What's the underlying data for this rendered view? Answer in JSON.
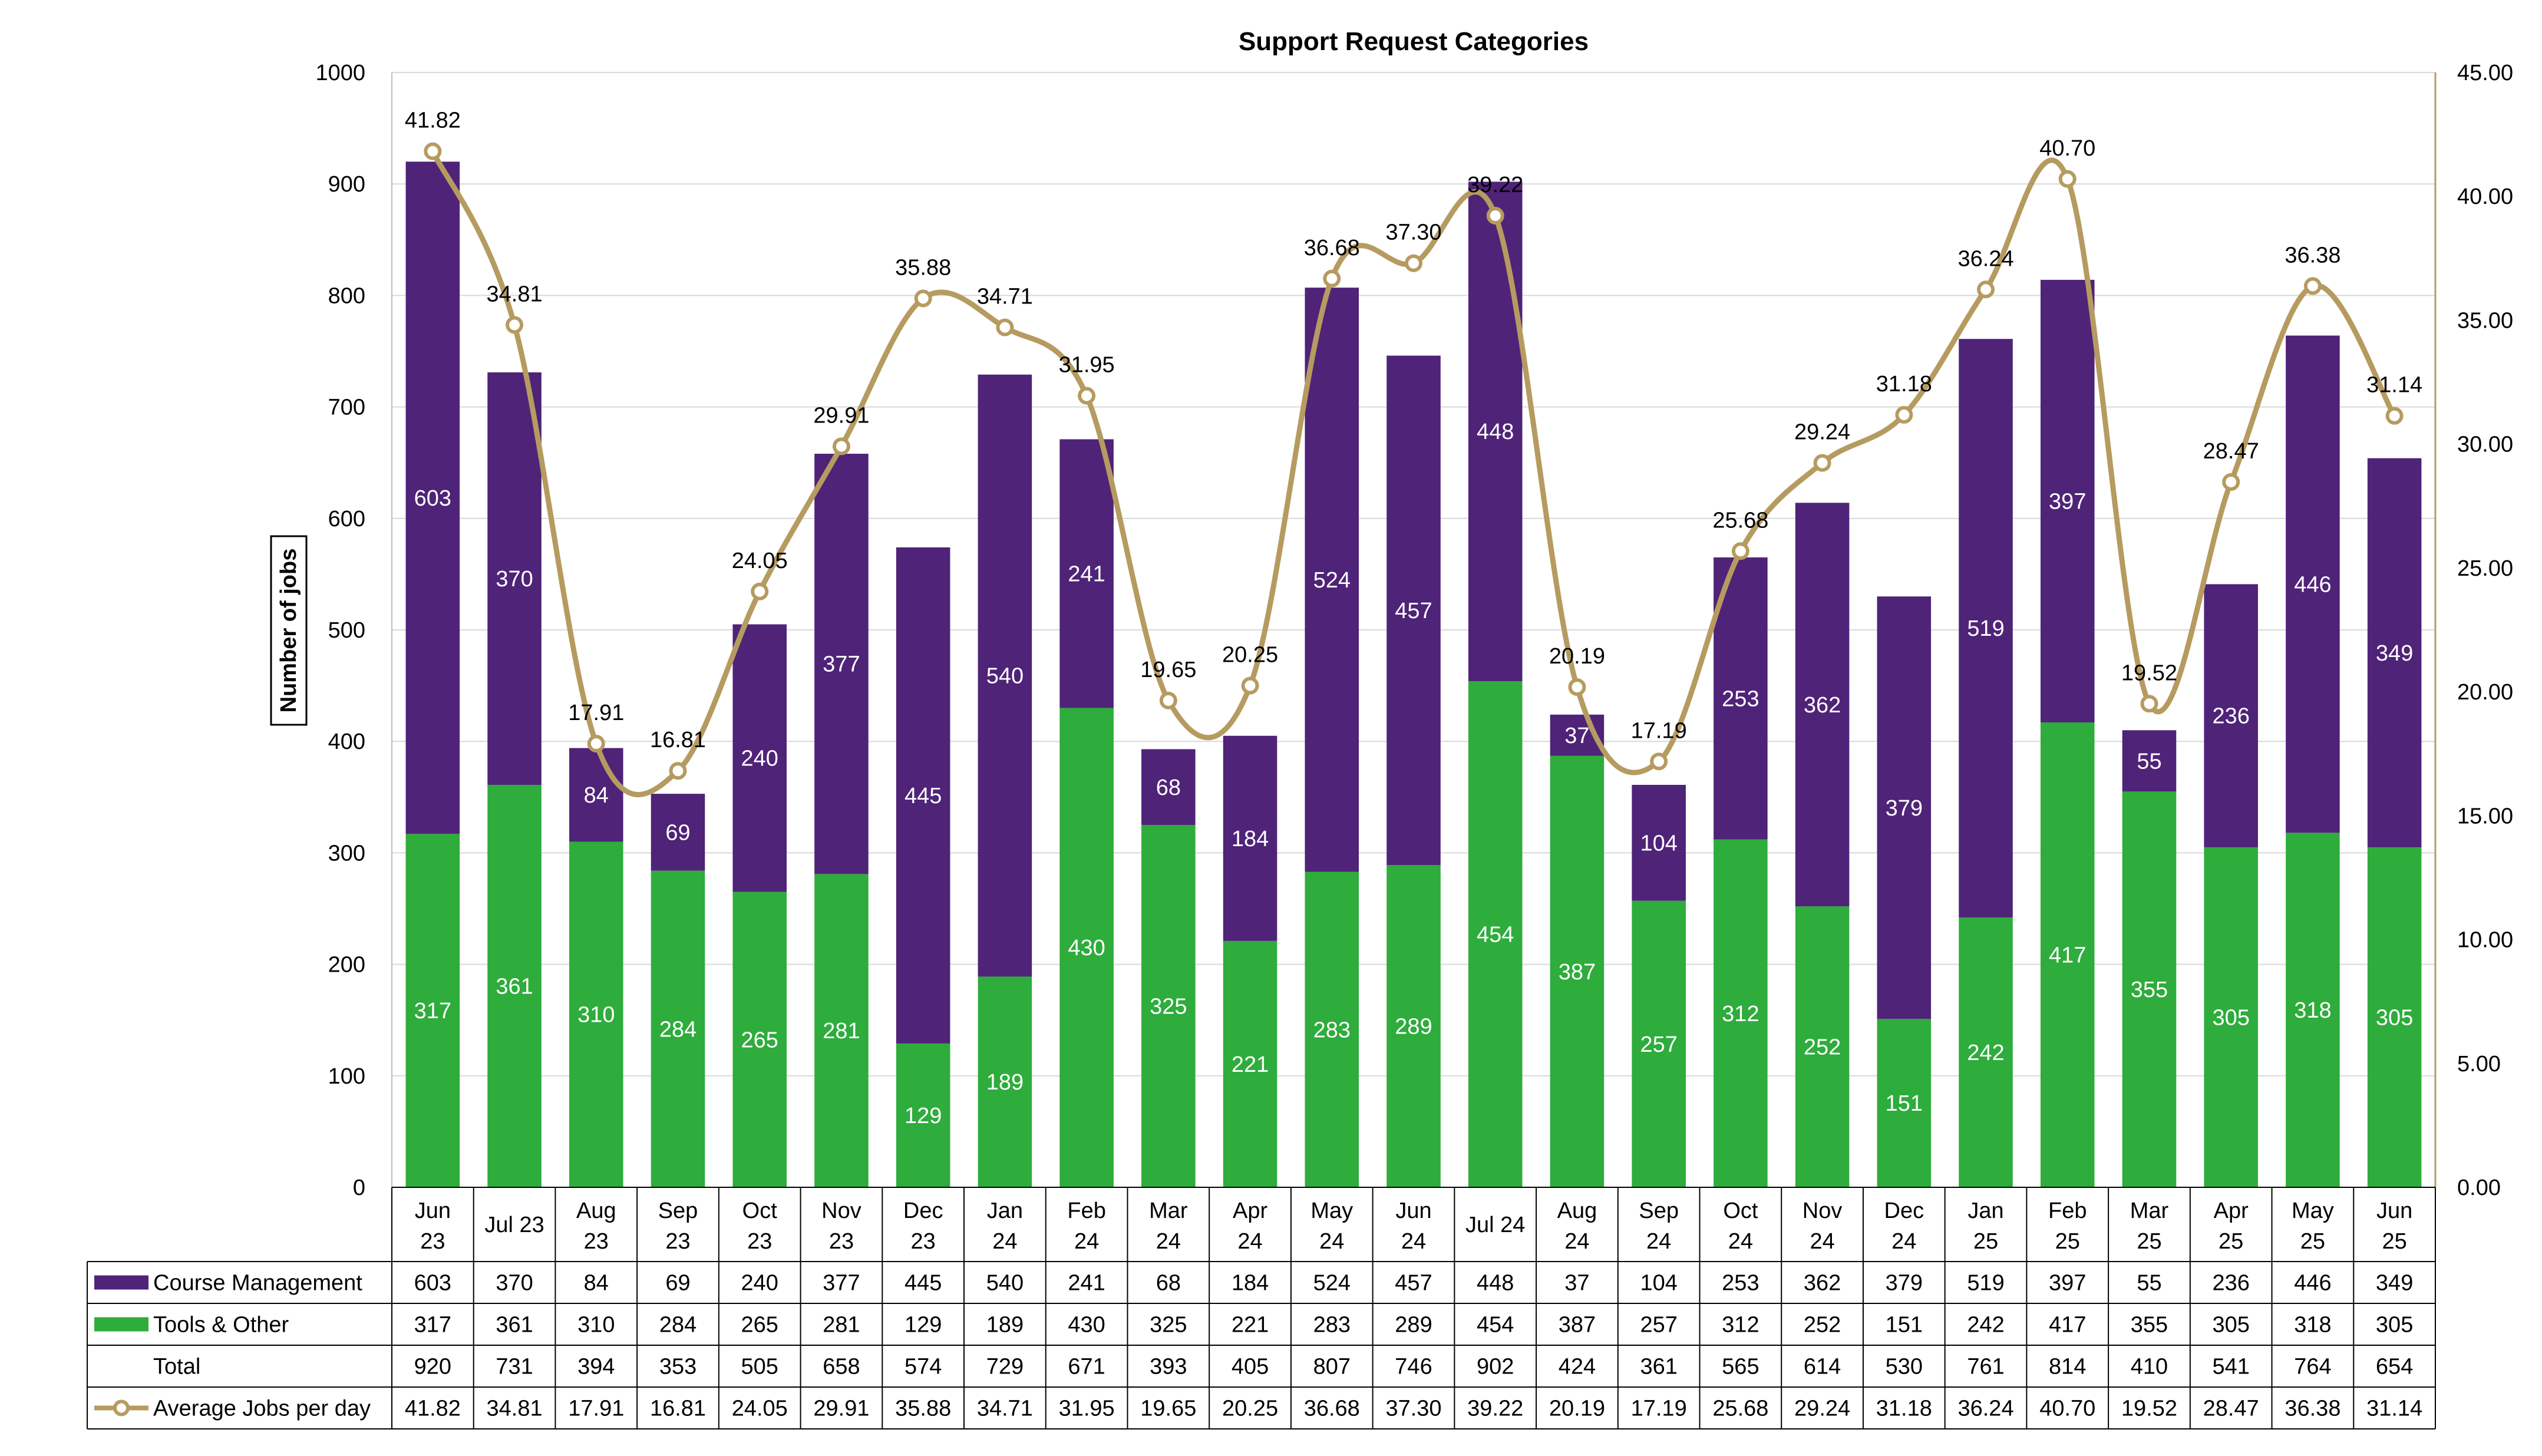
{
  "chart_data": {
    "type": "bar",
    "title": "Support Request Categories",
    "ylabel": "Number of jobs",
    "ylim": [
      0,
      1000
    ],
    "y_ticks": [
      "0",
      "100",
      "200",
      "300",
      "400",
      "500",
      "600",
      "700",
      "800",
      "900",
      "1000"
    ],
    "y2lim": [
      0,
      45
    ],
    "y2_ticks": [
      "0.00",
      "5.00",
      "10.00",
      "15.00",
      "20.00",
      "25.00",
      "30.00",
      "35.00",
      "40.00",
      "45.00"
    ],
    "categories": [
      [
        "Jun",
        "23"
      ],
      [
        "Jul 23"
      ],
      [
        "Aug",
        "23"
      ],
      [
        "Sep",
        "23"
      ],
      [
        "Oct",
        "23"
      ],
      [
        "Nov",
        "23"
      ],
      [
        "Dec",
        "23"
      ],
      [
        "Jan",
        "24"
      ],
      [
        "Feb",
        "24"
      ],
      [
        "Mar",
        "24"
      ],
      [
        "Apr",
        "24"
      ],
      [
        "May",
        "24"
      ],
      [
        "Jun",
        "24"
      ],
      [
        "Jul 24"
      ],
      [
        "Aug",
        "24"
      ],
      [
        "Sep",
        "24"
      ],
      [
        "Oct",
        "24"
      ],
      [
        "Nov",
        "24"
      ],
      [
        "Dec",
        "24"
      ],
      [
        "Jan",
        "25"
      ],
      [
        "Feb",
        "25"
      ],
      [
        "Mar",
        "25"
      ],
      [
        "Apr",
        "25"
      ],
      [
        "May",
        "25"
      ],
      [
        "Jun",
        "25"
      ]
    ],
    "series": [
      {
        "name": "Course Management",
        "type": "bar",
        "color": "#4f2378",
        "values": [
          603,
          370,
          84,
          69,
          240,
          377,
          445,
          540,
          241,
          68,
          184,
          524,
          457,
          448,
          37,
          104,
          253,
          362,
          379,
          519,
          397,
          55,
          236,
          446,
          349
        ]
      },
      {
        "name": "Tools & Other",
        "type": "bar",
        "color": "#2eac3c",
        "values": [
          317,
          361,
          310,
          284,
          265,
          281,
          129,
          189,
          430,
          325,
          221,
          283,
          289,
          454,
          387,
          257,
          312,
          252,
          151,
          242,
          417,
          355,
          305,
          318,
          305
        ]
      },
      {
        "name": "Average Jobs per day",
        "type": "line",
        "color": "#b69b60",
        "axis": "secondary",
        "values": [
          41.82,
          34.81,
          17.91,
          16.81,
          24.05,
          29.91,
          35.88,
          34.71,
          31.95,
          19.65,
          20.25,
          36.68,
          37.3,
          39.22,
          20.19,
          17.19,
          25.68,
          29.24,
          31.18,
          36.24,
          40.7,
          19.52,
          28.47,
          36.38,
          31.14
        ],
        "labels": [
          "41.82",
          "34.81",
          "17.91",
          "16.81",
          "24.05",
          "29.91",
          "35.88",
          "34.71",
          "31.95",
          "19.65",
          "20.25",
          "36.68",
          "37.30",
          "39.22",
          "20.19",
          "17.19",
          "25.68",
          "29.24",
          "31.18",
          "36.24",
          "40.70",
          "19.52",
          "28.47",
          "36.38",
          "31.14"
        ]
      }
    ],
    "data_table": {
      "rows": [
        {
          "label": "Course Management",
          "legend": "bar",
          "color": "#4f2378",
          "values": [
            "603",
            "370",
            "84",
            "69",
            "240",
            "377",
            "445",
            "540",
            "241",
            "68",
            "184",
            "524",
            "457",
            "448",
            "37",
            "104",
            "253",
            "362",
            "379",
            "519",
            "397",
            "55",
            "236",
            "446",
            "349"
          ]
        },
        {
          "label": "Tools & Other",
          "legend": "bar",
          "color": "#2eac3c",
          "values": [
            "317",
            "361",
            "310",
            "284",
            "265",
            "281",
            "129",
            "189",
            "430",
            "325",
            "221",
            "283",
            "289",
            "454",
            "387",
            "257",
            "312",
            "252",
            "151",
            "242",
            "417",
            "355",
            "305",
            "318",
            "305"
          ]
        },
        {
          "label": "Total",
          "legend": "none",
          "color": "",
          "values": [
            "920",
            "731",
            "394",
            "353",
            "505",
            "658",
            "574",
            "729",
            "671",
            "393",
            "405",
            "807",
            "746",
            "902",
            "424",
            "361",
            "565",
            "614",
            "530",
            "761",
            "814",
            "410",
            "541",
            "764",
            "654"
          ]
        },
        {
          "label": "Average Jobs per day",
          "legend": "line",
          "color": "#b69b60",
          "values": [
            "41.82",
            "34.81",
            "17.91",
            "16.81",
            "24.05",
            "29.91",
            "35.88",
            "34.71",
            "31.95",
            "19.65",
            "20.25",
            "36.68",
            "37.30",
            "39.22",
            "20.19",
            "17.19",
            "25.68",
            "29.24",
            "31.18",
            "36.24",
            "40.70",
            "19.52",
            "28.47",
            "36.38",
            "31.14"
          ]
        }
      ]
    },
    "grid": true,
    "legend": "data-table"
  }
}
